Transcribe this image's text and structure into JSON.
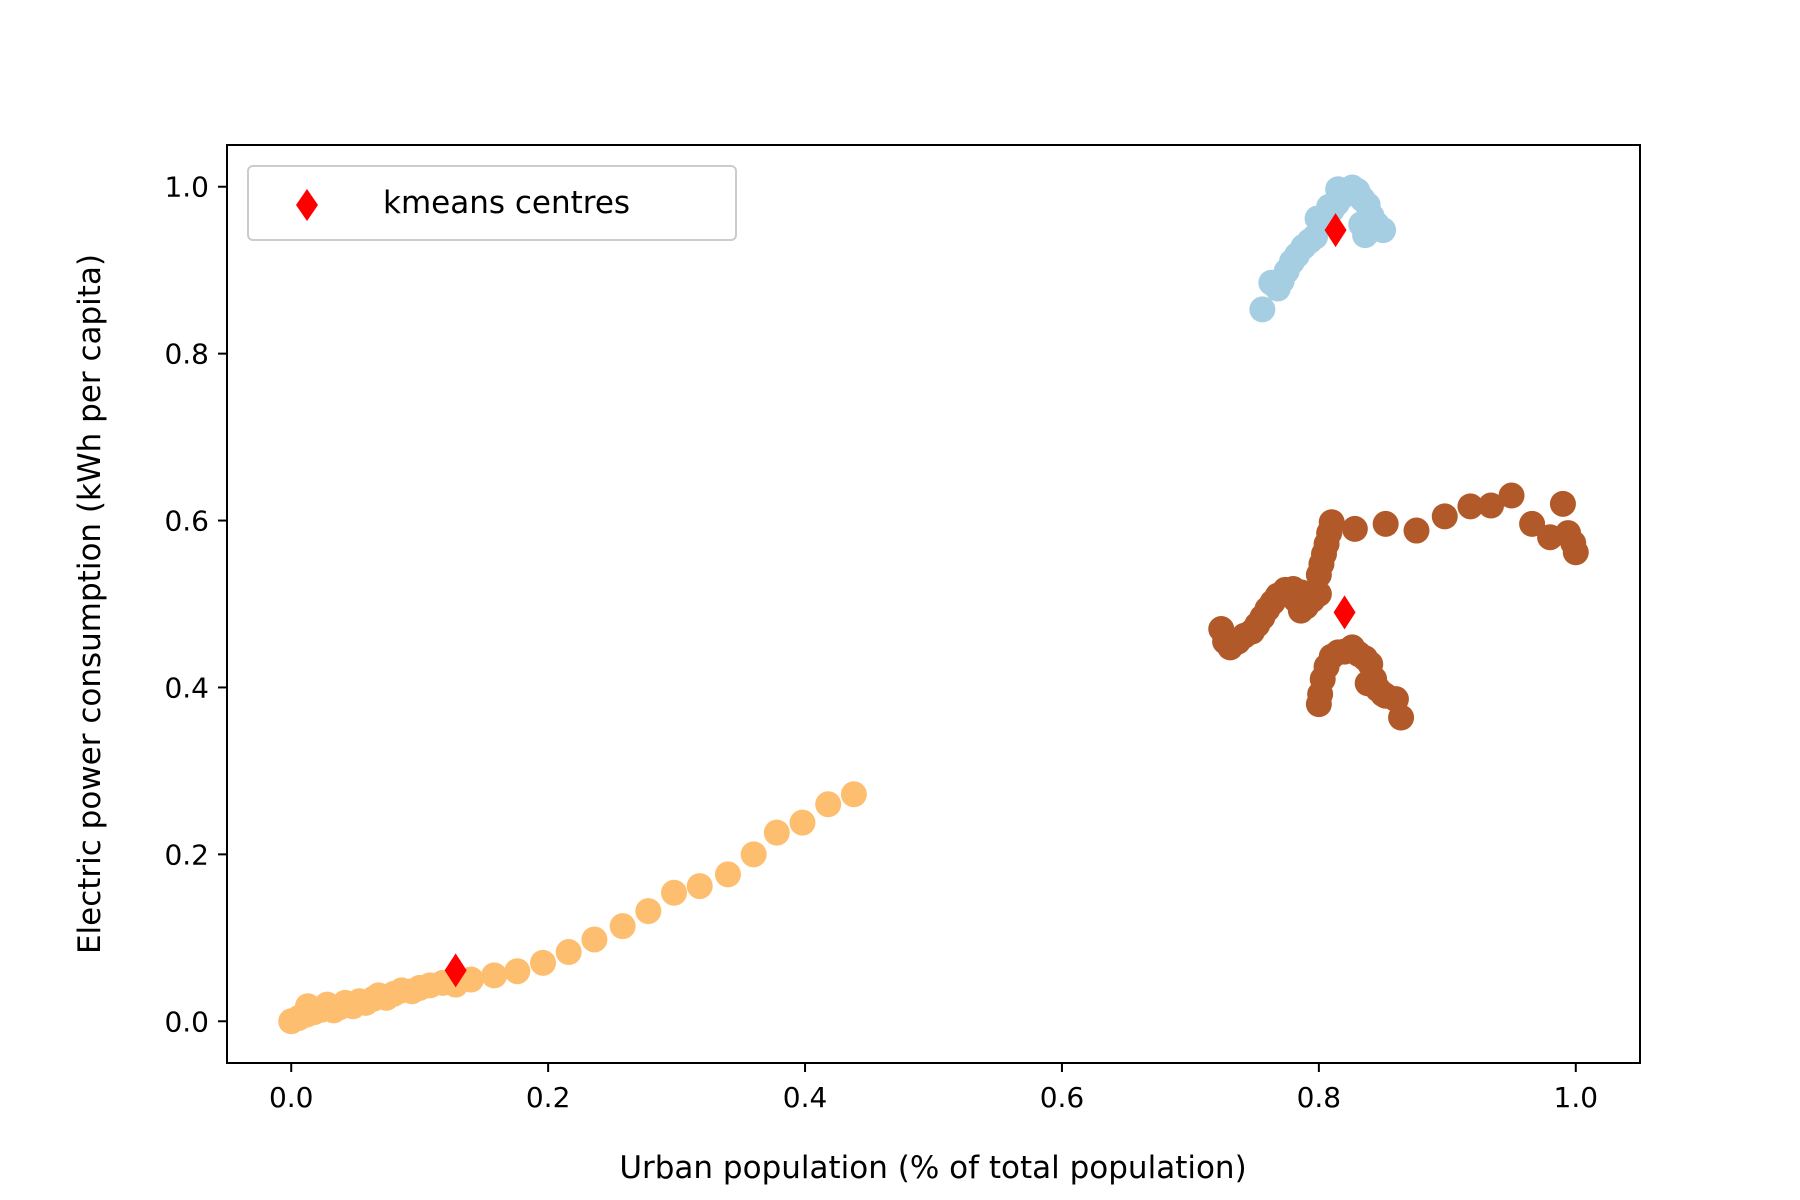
{
  "chart_data": {
    "type": "scatter",
    "xlabel": "Urban population (% of total population)",
    "ylabel": "Electric power consumption (kWh per capita)",
    "xlim": [
      -0.05,
      1.05
    ],
    "ylim": [
      -0.05,
      1.05
    ],
    "xticks": [
      "0.0",
      "0.2",
      "0.4",
      "0.6",
      "0.8",
      "1.0"
    ],
    "yticks": [
      "0.0",
      "0.2",
      "0.4",
      "0.6",
      "0.8",
      "1.0"
    ],
    "legend": {
      "placement": "top-left",
      "label": "kmeans centres"
    },
    "grid": false,
    "colors": {
      "cluster_light_blue": "#a6cee3",
      "cluster_orange": "#fdbf6f",
      "cluster_brown": "#b15928",
      "centres": "#ff0000"
    },
    "clusters": [
      {
        "color_key": "cluster_light_blue",
        "points": [
          [
            0.756,
            0.853
          ],
          [
            0.763,
            0.885
          ],
          [
            0.768,
            0.878
          ],
          [
            0.771,
            0.887
          ],
          [
            0.775,
            0.899
          ],
          [
            0.779,
            0.91
          ],
          [
            0.783,
            0.918
          ],
          [
            0.788,
            0.928
          ],
          [
            0.793,
            0.935
          ],
          [
            0.797,
            0.94
          ],
          [
            0.802,
            0.958
          ],
          [
            0.806,
            0.965
          ],
          [
            0.81,
            0.972
          ],
          [
            0.814,
            0.98
          ],
          [
            0.818,
            0.988
          ],
          [
            0.822,
            0.993
          ],
          [
            0.826,
            0.999
          ],
          [
            0.83,
            0.995
          ],
          [
            0.834,
            0.985
          ],
          [
            0.838,
            0.978
          ],
          [
            0.841,
            0.965
          ],
          [
            0.845,
            0.955
          ],
          [
            0.85,
            0.948
          ],
          [
            0.836,
            0.942
          ],
          [
            0.833,
            0.955
          ],
          [
            0.815,
            0.997
          ],
          [
            0.808,
            0.976
          ],
          [
            0.799,
            0.962
          ]
        ]
      },
      {
        "color_key": "cluster_orange",
        "points": [
          [
            0.0,
            0.0
          ],
          [
            0.006,
            0.004
          ],
          [
            0.012,
            0.008
          ],
          [
            0.013,
            0.018
          ],
          [
            0.018,
            0.011
          ],
          [
            0.024,
            0.014
          ],
          [
            0.028,
            0.02
          ],
          [
            0.033,
            0.013
          ],
          [
            0.038,
            0.017
          ],
          [
            0.042,
            0.022
          ],
          [
            0.048,
            0.018
          ],
          [
            0.053,
            0.024
          ],
          [
            0.058,
            0.022
          ],
          [
            0.064,
            0.027
          ],
          [
            0.068,
            0.031
          ],
          [
            0.074,
            0.028
          ],
          [
            0.08,
            0.033
          ],
          [
            0.086,
            0.037
          ],
          [
            0.094,
            0.036
          ],
          [
            0.1,
            0.04
          ],
          [
            0.108,
            0.043
          ],
          [
            0.118,
            0.046
          ],
          [
            0.128,
            0.044
          ],
          [
            0.14,
            0.05
          ],
          [
            0.158,
            0.055
          ],
          [
            0.176,
            0.06
          ],
          [
            0.196,
            0.07
          ],
          [
            0.216,
            0.083
          ],
          [
            0.236,
            0.098
          ],
          [
            0.258,
            0.114
          ],
          [
            0.278,
            0.132
          ],
          [
            0.298,
            0.154
          ],
          [
            0.318,
            0.162
          ],
          [
            0.34,
            0.176
          ],
          [
            0.36,
            0.2
          ],
          [
            0.378,
            0.226
          ],
          [
            0.398,
            0.238
          ],
          [
            0.418,
            0.26
          ],
          [
            0.438,
            0.272
          ]
        ]
      },
      {
        "color_key": "cluster_brown",
        "points": [
          [
            0.724,
            0.47
          ],
          [
            0.727,
            0.455
          ],
          [
            0.731,
            0.448
          ],
          [
            0.737,
            0.455
          ],
          [
            0.742,
            0.462
          ],
          [
            0.748,
            0.467
          ],
          [
            0.752,
            0.475
          ],
          [
            0.756,
            0.484
          ],
          [
            0.76,
            0.494
          ],
          [
            0.764,
            0.502
          ],
          [
            0.768,
            0.51
          ],
          [
            0.774,
            0.517
          ],
          [
            0.78,
            0.518
          ],
          [
            0.786,
            0.514
          ],
          [
            0.79,
            0.497
          ],
          [
            0.795,
            0.505
          ],
          [
            0.8,
            0.512
          ],
          [
            0.786,
            0.492
          ],
          [
            0.782,
            0.505
          ],
          [
            0.8,
            0.535
          ],
          [
            0.802,
            0.548
          ],
          [
            0.804,
            0.56
          ],
          [
            0.806,
            0.572
          ],
          [
            0.808,
            0.585
          ],
          [
            0.81,
            0.598
          ],
          [
            0.828,
            0.59
          ],
          [
            0.852,
            0.596
          ],
          [
            0.876,
            0.588
          ],
          [
            0.898,
            0.605
          ],
          [
            0.918,
            0.617
          ],
          [
            0.934,
            0.618
          ],
          [
            0.95,
            0.63
          ],
          [
            0.966,
            0.596
          ],
          [
            0.98,
            0.58
          ],
          [
            0.99,
            0.62
          ],
          [
            0.994,
            0.585
          ],
          [
            0.998,
            0.573
          ],
          [
            1.0,
            0.562
          ],
          [
            0.8,
            0.38
          ],
          [
            0.801,
            0.392
          ],
          [
            0.803,
            0.41
          ],
          [
            0.806,
            0.425
          ],
          [
            0.81,
            0.437
          ],
          [
            0.815,
            0.442
          ],
          [
            0.82,
            0.443
          ],
          [
            0.826,
            0.448
          ],
          [
            0.831,
            0.44
          ],
          [
            0.836,
            0.435
          ],
          [
            0.84,
            0.428
          ],
          [
            0.843,
            0.41
          ],
          [
            0.846,
            0.398
          ],
          [
            0.852,
            0.39
          ],
          [
            0.86,
            0.386
          ],
          [
            0.864,
            0.364
          ],
          [
            0.85,
            0.392
          ],
          [
            0.838,
            0.405
          ]
        ]
      }
    ],
    "centres": [
      [
        0.813,
        0.948
      ],
      [
        0.128,
        0.061
      ],
      [
        0.82,
        0.49
      ]
    ]
  }
}
